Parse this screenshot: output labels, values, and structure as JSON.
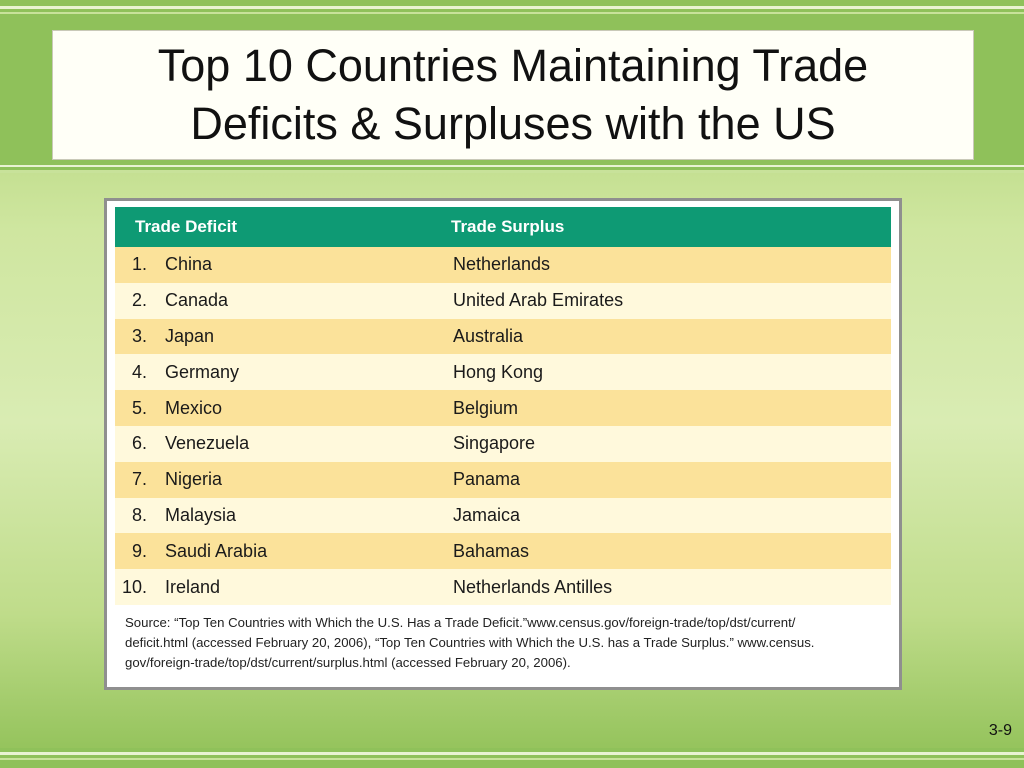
{
  "slide": {
    "title_line1": "Top 10 Countries Maintaining Trade",
    "title_line2": "Deficits & Surpluses with the US",
    "page_number": "3-9"
  },
  "table": {
    "headers": {
      "deficit": "Trade Deficit",
      "surplus": "Trade Surplus"
    },
    "rows": [
      {
        "num": "1.",
        "deficit": "China",
        "surplus": "Netherlands"
      },
      {
        "num": "2.",
        "deficit": "Canada",
        "surplus": "United Arab Emirates"
      },
      {
        "num": "3.",
        "deficit": "Japan",
        "surplus": "Australia"
      },
      {
        "num": "4.",
        "deficit": "Germany",
        "surplus": "Hong Kong"
      },
      {
        "num": "5.",
        "deficit": "Mexico",
        "surplus": "Belgium"
      },
      {
        "num": "6.",
        "deficit": "Venezuela",
        "surplus": "Singapore"
      },
      {
        "num": "7.",
        "deficit": "Nigeria",
        "surplus": "Panama"
      },
      {
        "num": "8.",
        "deficit": "Malaysia",
        "surplus": "Jamaica"
      },
      {
        "num": "9.",
        "deficit": "Saudi Arabia",
        "surplus": "Bahamas"
      },
      {
        "num": "10.",
        "deficit": "Ireland",
        "surplus": "Netherlands Antilles"
      }
    ],
    "source_line1": "Source: “Top Ten Countries with Which the U.S. Has a Trade Deficit.”www.census.gov/foreign-trade/top/dst/current/",
    "source_line2": "deficit.html (accessed February 20, 2006), “Top Ten Countries with Which the U.S. has a Trade Surplus.” www.census.",
    "source_line3": "gov/foreign-trade/top/dst/current/surplus.html (accessed February 20, 2006).",
    "colors": {
      "header": "#0e9a74",
      "row_odd": "#fbe29a",
      "row_even": "#fff9dc"
    }
  },
  "theme": {
    "band": "#8fc15a",
    "background": "#d9ecb3"
  }
}
